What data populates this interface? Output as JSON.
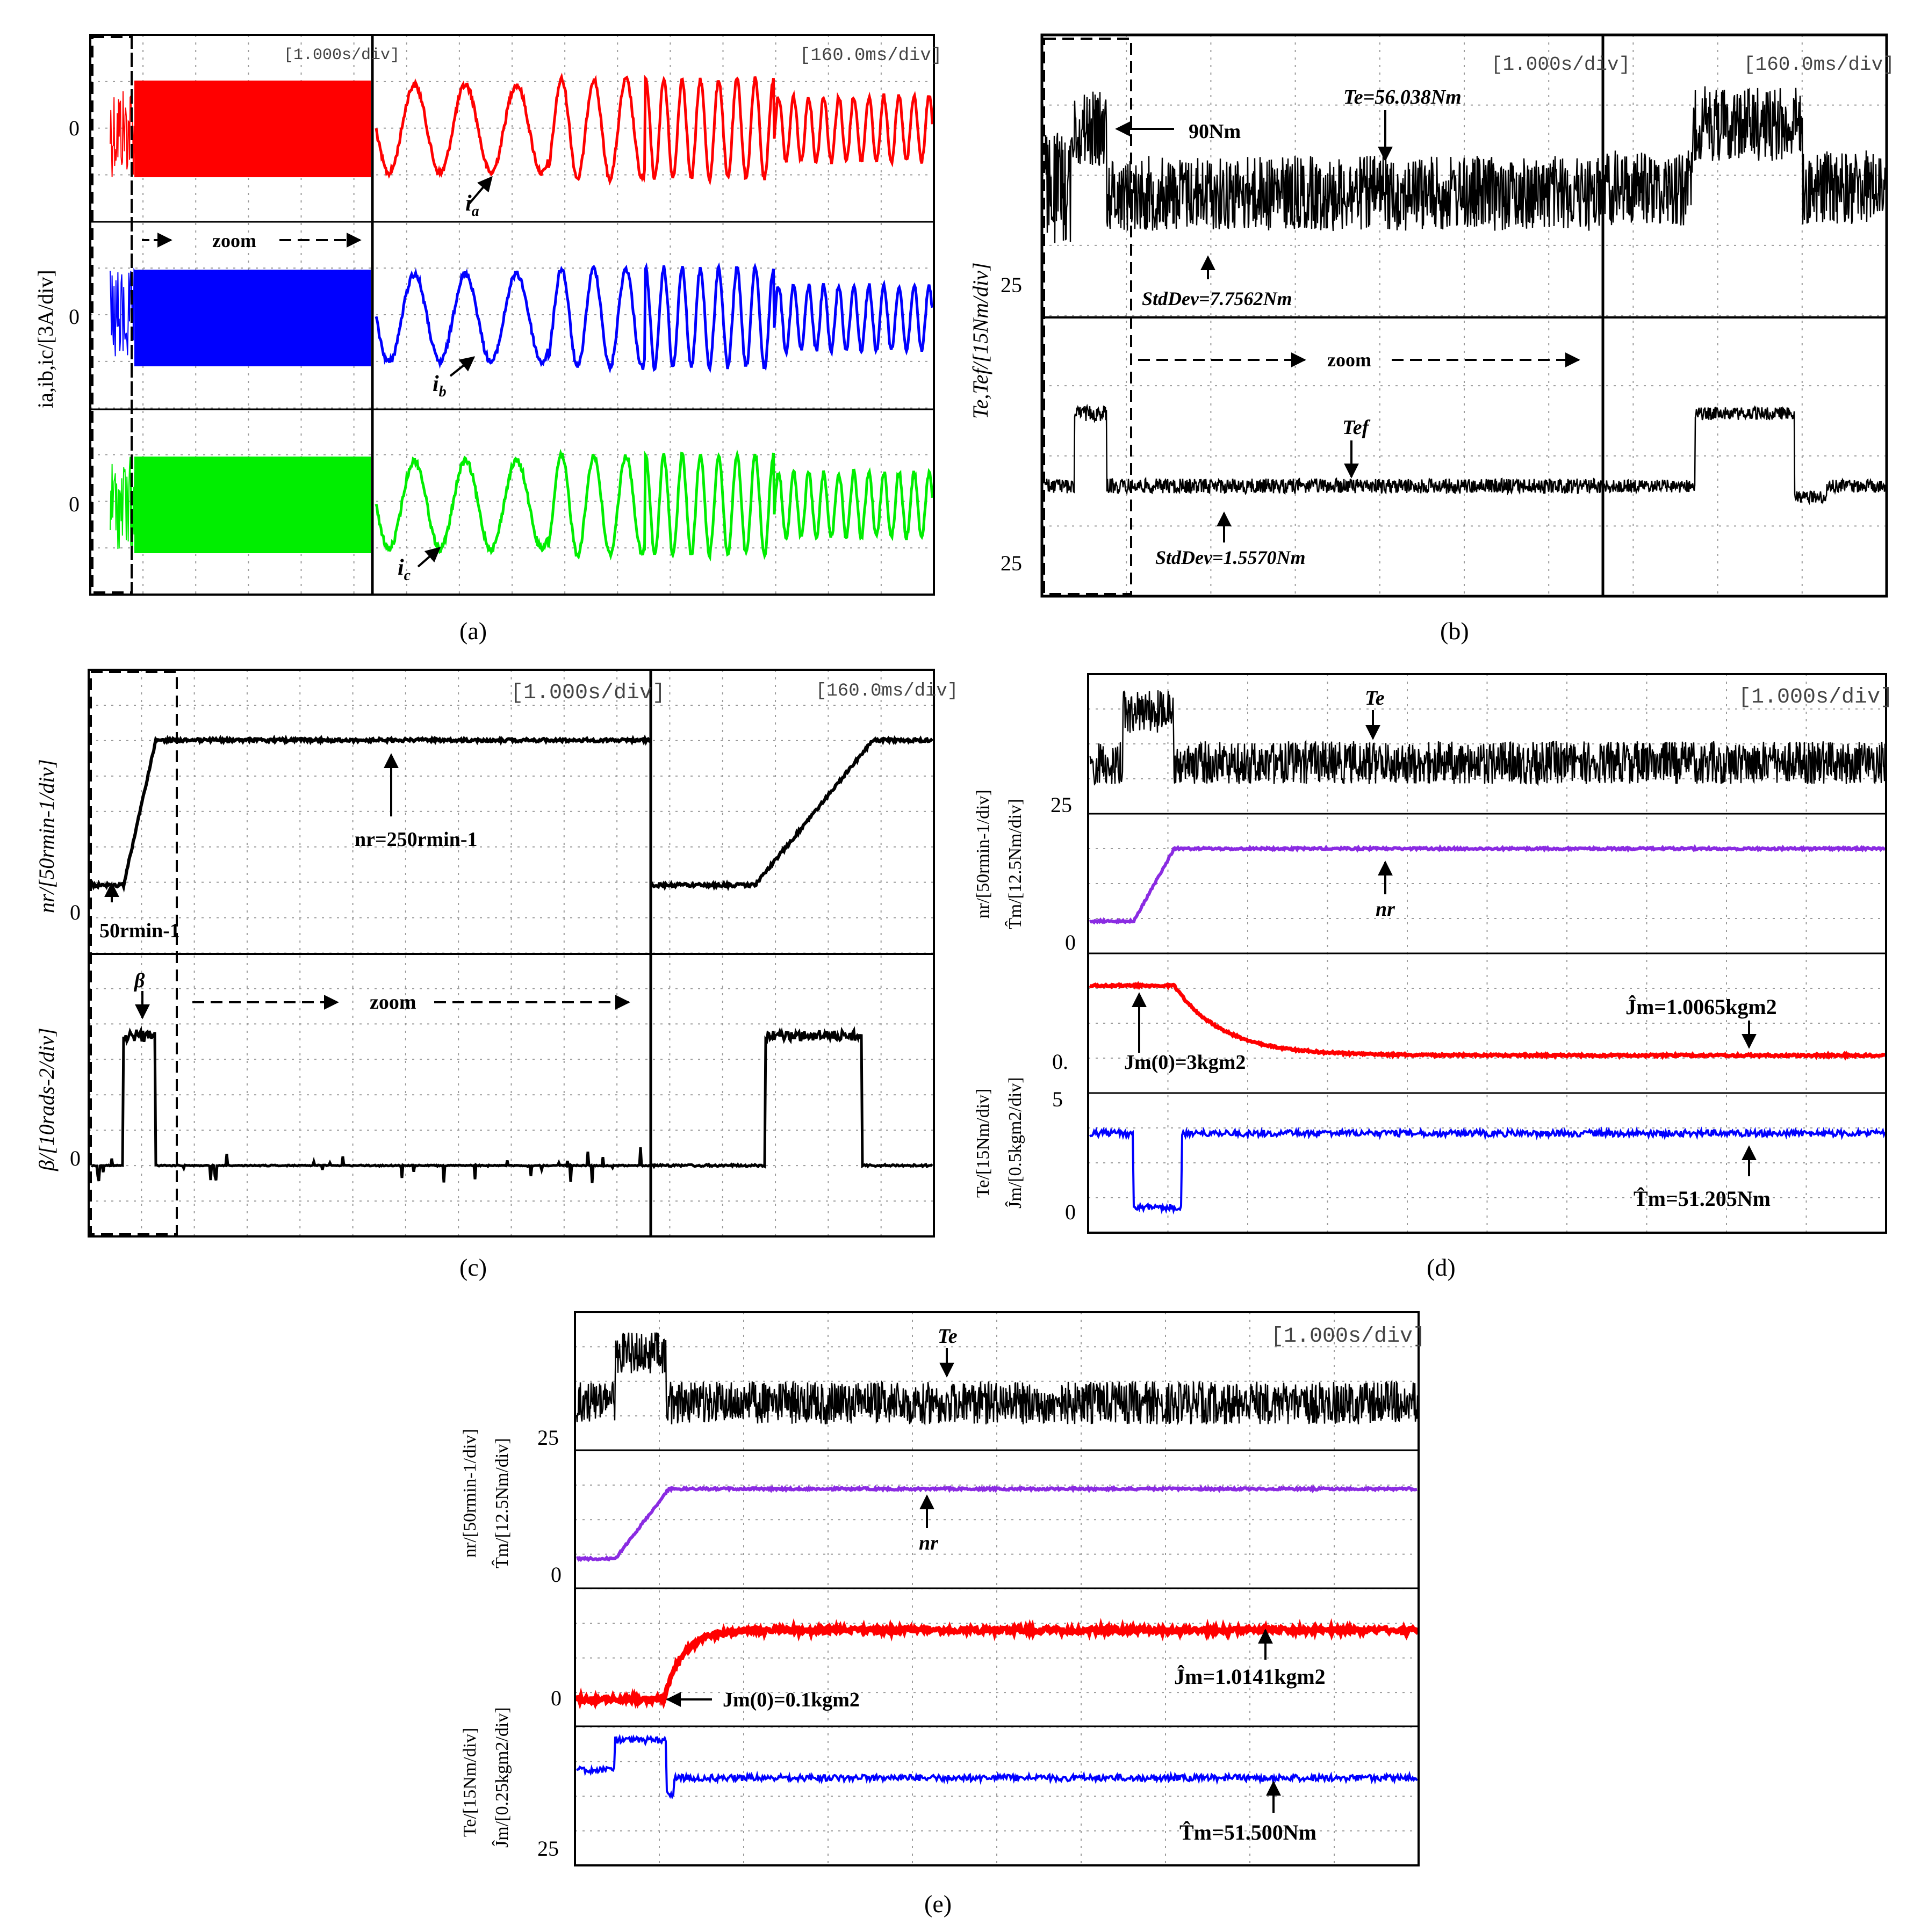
{
  "figure": {
    "panel_labels": [
      "(a)",
      "(b)",
      "(c)",
      "(d)",
      "(e)"
    ]
  },
  "chart_data": [
    {
      "id": "a",
      "type": "line",
      "scale_labels": [
        "[1.000s/div]",
        "[160.0ms/div]"
      ],
      "ylabel": "ia,ib,ic/[3A/div]",
      "zoom_label": "zoom",
      "channels": [
        {
          "name": "ia",
          "label": "i_a",
          "zero_label": "0",
          "color": "#ff0000"
        },
        {
          "name": "ib",
          "label": "i_b",
          "zero_label": "0",
          "color": "#0000ff"
        },
        {
          "name": "ic",
          "label": "i_c",
          "zero_label": "0",
          "color": "#00ee00"
        }
      ]
    },
    {
      "id": "b",
      "type": "line",
      "scale_labels": [
        "[1.000s/div]",
        "[160.0ms/div]"
      ],
      "ylabel": "Te,Tef/[15Nm/div]",
      "zoom_label": "zoom",
      "tick_labels": [
        "25",
        "25"
      ],
      "annotations": [
        "90Nm",
        "Te=56.038Nm",
        "StdDev=7.7562Nm",
        "Tef",
        "StdDev=1.5570Nm"
      ]
    },
    {
      "id": "c",
      "type": "line",
      "scale_labels": [
        "[1.000s/div]",
        "[160.0ms/div]"
      ],
      "ylabels": [
        "nr/[50rmin-1/div]",
        "β/[10rads-2/div]"
      ],
      "zoom_label": "zoom",
      "tick_labels": [
        "0",
        "0"
      ],
      "annotations": [
        "nr=250rmin-1",
        "50rmin-1",
        "β"
      ]
    },
    {
      "id": "d",
      "type": "line",
      "scale_labels": [
        "[1.000s/div]"
      ],
      "ylabels": [
        "nr/[50rmin-1/div]",
        "T̂m/[12.5Nm/div]",
        "Te/[15Nm/div]",
        "Ĵm/[0.5kgm2/div]"
      ],
      "tick_labels": [
        "25",
        "0",
        "0.",
        "5",
        "0"
      ],
      "annotations": [
        "Te",
        "nr",
        "Ĵm=1.0065kgm2",
        "Jm(0)=3kgm2",
        "T̂m=51.205Nm"
      ]
    },
    {
      "id": "e",
      "type": "line",
      "scale_labels": [
        "[1.000s/div]"
      ],
      "ylabels": [
        "nr/[50rmin-1/div]",
        "T̂m/[12.5Nm/div]",
        "Te/[15Nm/div]",
        "Ĵm/[0.25kgm2/div]"
      ],
      "tick_labels": [
        "25",
        "0",
        "0",
        "25"
      ],
      "annotations": [
        "Te",
        "nr",
        "Jm(0)=0.1kgm2",
        "Ĵm=1.0141kgm2",
        "T̂m=51.500Nm"
      ]
    }
  ]
}
